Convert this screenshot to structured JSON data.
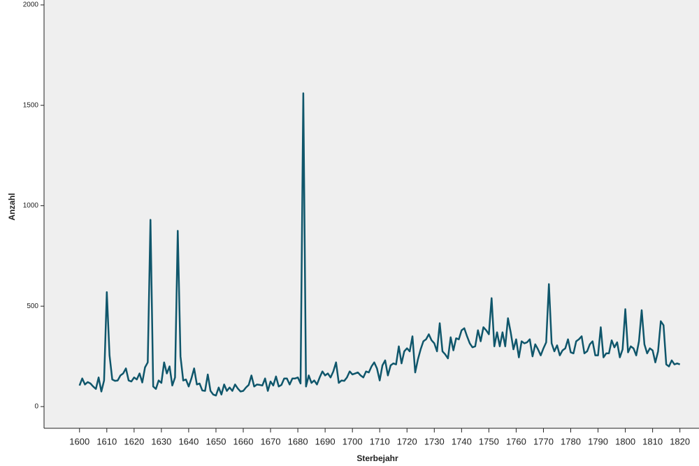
{
  "chart_data": {
    "type": "line",
    "x_label": "Sterbejahr",
    "y_label": "Anzahl",
    "color": "#0f566b",
    "grid": false,
    "x": [
      1600,
      1601,
      1602,
      1603,
      1604,
      1605,
      1606,
      1607,
      1608,
      1609,
      1610,
      1611,
      1612,
      1613,
      1614,
      1615,
      1616,
      1617,
      1618,
      1619,
      1620,
      1621,
      1622,
      1623,
      1624,
      1625,
      1626,
      1627,
      1628,
      1629,
      1630,
      1631,
      1632,
      1633,
      1634,
      1635,
      1636,
      1637,
      1638,
      1639,
      1640,
      1641,
      1642,
      1643,
      1644,
      1645,
      1646,
      1647,
      1648,
      1649,
      1650,
      1651,
      1652,
      1653,
      1654,
      1655,
      1656,
      1657,
      1658,
      1659,
      1660,
      1661,
      1662,
      1663,
      1664,
      1665,
      1666,
      1667,
      1668,
      1669,
      1670,
      1671,
      1672,
      1673,
      1674,
      1675,
      1676,
      1677,
      1678,
      1679,
      1680,
      1681,
      1682,
      1683,
      1684,
      1685,
      1686,
      1687,
      1688,
      1689,
      1690,
      1691,
      1692,
      1693,
      1694,
      1695,
      1696,
      1697,
      1698,
      1699,
      1700,
      1701,
      1702,
      1703,
      1704,
      1705,
      1706,
      1707,
      1708,
      1709,
      1710,
      1711,
      1712,
      1713,
      1714,
      1715,
      1716,
      1717,
      1718,
      1719,
      1720,
      1721,
      1722,
      1723,
      1724,
      1725,
      1726,
      1727,
      1728,
      1729,
      1730,
      1731,
      1732,
      1733,
      1734,
      1735,
      1736,
      1737,
      1738,
      1739,
      1740,
      1741,
      1742,
      1743,
      1744,
      1745,
      1746,
      1747,
      1748,
      1749,
      1750,
      1751,
      1752,
      1753,
      1754,
      1755,
      1756,
      1757,
      1758,
      1759,
      1760,
      1761,
      1762,
      1763,
      1764,
      1765,
      1766,
      1767,
      1768,
      1769,
      1770,
      1771,
      1772,
      1773,
      1774,
      1775,
      1776,
      1777,
      1778,
      1779,
      1780,
      1781,
      1782,
      1783,
      1784,
      1785,
      1786,
      1787,
      1788,
      1789,
      1790,
      1791,
      1792,
      1793,
      1794,
      1795,
      1796,
      1797,
      1798,
      1799,
      1800,
      1801,
      1802,
      1803,
      1804,
      1805,
      1806,
      1807,
      1808,
      1809,
      1810,
      1811,
      1812,
      1813,
      1814,
      1815,
      1816,
      1817,
      1818,
      1819,
      1820
    ],
    "values": [
      105,
      140,
      110,
      122,
      115,
      100,
      88,
      145,
      75,
      130,
      570,
      255,
      135,
      128,
      130,
      155,
      165,
      190,
      130,
      125,
      145,
      135,
      165,
      120,
      195,
      220,
      930,
      100,
      88,
      130,
      118,
      220,
      165,
      200,
      105,
      145,
      875,
      250,
      130,
      135,
      100,
      140,
      190,
      110,
      115,
      80,
      78,
      160,
      78,
      60,
      55,
      95,
      60,
      110,
      78,
      95,
      78,
      110,
      90,
      75,
      78,
      95,
      108,
      155,
      100,
      110,
      108,
      105,
      140,
      78,
      125,
      105,
      150,
      100,
      108,
      140,
      140,
      110,
      140,
      140,
      145,
      115,
      1560,
      100,
      155,
      118,
      130,
      110,
      145,
      175,
      155,
      165,
      145,
      175,
      220,
      118,
      130,
      128,
      145,
      175,
      160,
      165,
      170,
      155,
      145,
      175,
      170,
      200,
      220,
      190,
      130,
      205,
      230,
      155,
      205,
      215,
      210,
      300,
      215,
      275,
      290,
      275,
      350,
      170,
      235,
      285,
      325,
      335,
      360,
      330,
      315,
      275,
      415,
      275,
      260,
      240,
      345,
      280,
      340,
      335,
      380,
      390,
      350,
      315,
      295,
      300,
      380,
      325,
      395,
      380,
      360,
      540,
      300,
      370,
      300,
      370,
      300,
      440,
      370,
      285,
      335,
      245,
      325,
      315,
      320,
      335,
      250,
      310,
      285,
      255,
      290,
      320,
      610,
      315,
      275,
      305,
      255,
      280,
      290,
      335,
      270,
      265,
      325,
      335,
      350,
      265,
      275,
      310,
      325,
      255,
      255,
      395,
      245,
      265,
      265,
      330,
      295,
      320,
      245,
      285,
      485,
      270,
      300,
      290,
      255,
      325,
      480,
      310,
      265,
      290,
      280,
      220,
      275,
      425,
      405,
      210,
      200,
      230,
      210,
      215,
      210
    ],
    "xlim": [
      1587,
      1827
    ],
    "ylim": [
      -108,
      2000
    ],
    "xticks": [
      1600,
      1610,
      1620,
      1630,
      1640,
      1650,
      1660,
      1670,
      1680,
      1690,
      1700,
      1710,
      1720,
      1730,
      1740,
      1750,
      1760,
      1770,
      1780,
      1790,
      1800,
      1810,
      1820
    ],
    "yticks": [
      0,
      500,
      1000,
      1500,
      2000
    ]
  }
}
